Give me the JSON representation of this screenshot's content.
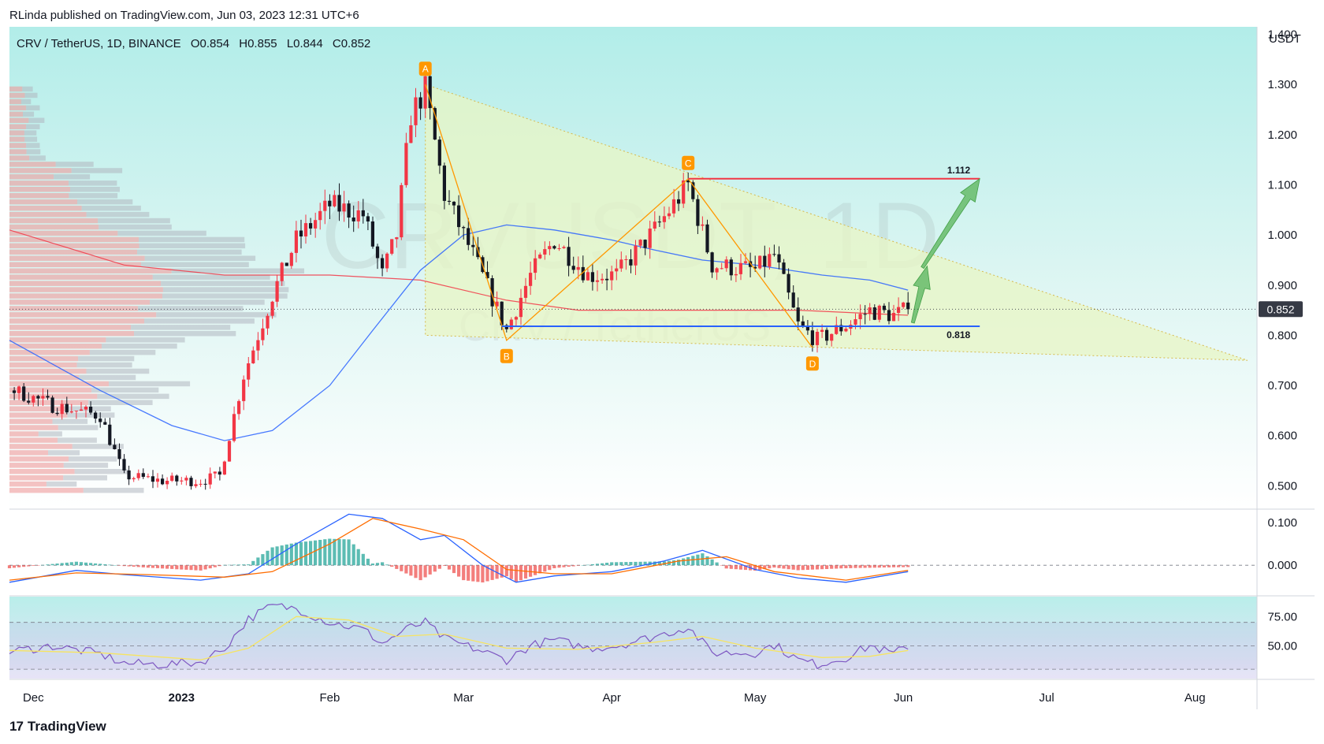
{
  "header": {
    "publisher": "RLinda published on TradingView.com, Jun 03, 2023 12:31 UTC+6",
    "symbol": "CRV / TetherUS, 1D, BINANCE",
    "ohlc": [
      {
        "k": "O",
        "v": "0.854"
      },
      {
        "k": "H",
        "v": "0.855"
      },
      {
        "k": "L",
        "v": "0.844"
      },
      {
        "k": "C",
        "v": "0.852"
      }
    ]
  },
  "watermark": {
    "big": "CRVUSDT, 1D",
    "small": "CRV / TetherUS"
  },
  "footer": {
    "brand": "TradingView"
  },
  "colors": {
    "up": "#f23645",
    "down": "#131722",
    "ma_blue": "#2962ff",
    "ma_red": "#f23645",
    "triangle": "#e8f5c4",
    "harmonic": "#ff9800",
    "arrow": "#66bb6a",
    "resistance": "#f23645",
    "support": "#2962ff",
    "macd_line": "#2962ff",
    "signal_line": "#ff6d00",
    "rsi_line": "#7e57c2",
    "rsi_ma": "#f7e461"
  },
  "chart_data": [
    {
      "type": "candlestick",
      "title": "CRV / TetherUS, 1D, BINANCE",
      "unit": "USDT",
      "y_ticks": [
        "1.400",
        "1.300",
        "1.200",
        "1.100",
        "1.000",
        "0.900",
        "0.800",
        "0.700",
        "0.600",
        "0.500"
      ],
      "ylim": [
        0.455,
        1.415
      ],
      "x_ticks": [
        "Dec",
        "2023",
        "Feb",
        "Mar",
        "Apr",
        "May",
        "Jun",
        "Jul",
        "Aug"
      ],
      "x_range": [
        "2022-11-26",
        "2023-08-14"
      ],
      "last_price": "0.852",
      "anchors": [
        [
          "2022-11-27",
          0.69
        ],
        [
          "2022-12-05",
          0.66
        ],
        [
          "2022-12-15",
          0.64
        ],
        [
          "2022-12-20",
          0.52
        ],
        [
          "2022-12-28",
          0.51
        ],
        [
          "2023-01-05",
          0.51
        ],
        [
          "2023-01-09",
          0.52
        ],
        [
          "2023-01-14",
          0.72
        ],
        [
          "2023-01-20",
          0.88
        ],
        [
          "2023-01-25",
          0.99
        ],
        [
          "2023-02-01",
          1.06
        ],
        [
          "2023-02-08",
          1.04
        ],
        [
          "2023-02-12",
          0.92
        ],
        [
          "2023-02-15",
          1.0
        ],
        [
          "2023-02-18",
          1.24
        ],
        [
          "2023-02-21",
          1.29
        ],
        [
          "2023-02-25",
          1.08
        ],
        [
          "2023-03-03",
          0.96
        ],
        [
          "2023-03-10",
          0.81
        ],
        [
          "2023-03-15",
          0.92
        ],
        [
          "2023-03-20",
          0.99
        ],
        [
          "2023-03-27",
          0.92
        ],
        [
          "2023-04-02",
          0.92
        ],
        [
          "2023-04-10",
          1.01
        ],
        [
          "2023-04-17",
          1.1
        ],
        [
          "2023-04-22",
          0.94
        ],
        [
          "2023-05-01",
          0.93
        ],
        [
          "2023-05-05",
          0.96
        ],
        [
          "2023-05-10",
          0.82
        ],
        [
          "2023-05-14",
          0.79
        ],
        [
          "2023-05-20",
          0.82
        ],
        [
          "2023-05-25",
          0.85
        ],
        [
          "2023-05-30",
          0.84
        ],
        [
          "2023-06-02",
          0.852
        ]
      ],
      "ma_blue": [
        [
          "2022-11-26",
          0.79
        ],
        [
          "2022-12-15",
          0.69
        ],
        [
          "2022-12-30",
          0.62
        ],
        [
          "2023-01-10",
          0.59
        ],
        [
          "2023-01-20",
          0.61
        ],
        [
          "2023-02-01",
          0.7
        ],
        [
          "2023-02-10",
          0.81
        ],
        [
          "2023-02-20",
          0.93
        ],
        [
          "2023-03-01",
          1.0
        ],
        [
          "2023-03-10",
          1.02
        ],
        [
          "2023-03-20",
          1.01
        ],
        [
          "2023-04-01",
          0.99
        ],
        [
          "2023-04-10",
          0.97
        ],
        [
          "2023-04-20",
          0.95
        ],
        [
          "2023-05-01",
          0.94
        ],
        [
          "2023-05-15",
          0.92
        ],
        [
          "2023-05-25",
          0.91
        ],
        [
          "2023-06-02",
          0.89
        ]
      ],
      "ma_red": [
        [
          "2022-11-26",
          1.01
        ],
        [
          "2022-12-20",
          0.94
        ],
        [
          "2023-01-10",
          0.92
        ],
        [
          "2023-02-01",
          0.92
        ],
        [
          "2023-02-20",
          0.91
        ],
        [
          "2023-03-10",
          0.87
        ],
        [
          "2023-03-25",
          0.85
        ],
        [
          "2023-04-15",
          0.85
        ],
        [
          "2023-05-10",
          0.85
        ],
        [
          "2023-06-02",
          0.84
        ]
      ],
      "harmonic_points": [
        {
          "label": "A",
          "date": "2023-02-21",
          "price": 1.3
        },
        {
          "label": "B",
          "date": "2023-03-10",
          "price": 0.79
        },
        {
          "label": "C",
          "date": "2023-04-17",
          "price": 1.112
        },
        {
          "label": "D",
          "date": "2023-05-13",
          "price": 0.775
        }
      ],
      "triangle": [
        {
          "date": "2023-02-21",
          "price": 1.3
        },
        {
          "date": "2023-08-12",
          "price": 0.75
        },
        {
          "date": "2023-02-21",
          "price": 0.8
        }
      ],
      "levels": [
        {
          "label": "1.112",
          "price": 1.112,
          "from": "2023-04-17",
          "to": "2023-06-17",
          "color": "resistance"
        },
        {
          "label": "0.818",
          "price": 0.818,
          "from": "2023-03-09",
          "to": "2023-06-17",
          "color": "support"
        }
      ],
      "arrows": [
        {
          "from": {
            "date": "2023-06-03",
            "price": 0.825
          },
          "to": {
            "date": "2023-06-06",
            "price": 0.938
          }
        },
        {
          "from": {
            "date": "2023-06-05",
            "price": 0.935
          },
          "to": {
            "date": "2023-06-17",
            "price": 1.112
          }
        }
      ]
    },
    {
      "type": "line",
      "title": "MACD",
      "y_ticks": [
        "0.100",
        "0.000"
      ],
      "ylim": [
        -0.07,
        0.13
      ],
      "macd": [
        [
          "2022-11-26",
          -0.04
        ],
        [
          "2022-12-10",
          -0.012
        ],
        [
          "2022-12-20",
          -0.022
        ],
        [
          "2023-01-05",
          -0.035
        ],
        [
          "2023-01-15",
          -0.02
        ],
        [
          "2023-01-25",
          0.05
        ],
        [
          "2023-02-05",
          0.12
        ],
        [
          "2023-02-12",
          0.11
        ],
        [
          "2023-02-20",
          0.06
        ],
        [
          "2023-02-25",
          0.07
        ],
        [
          "2023-03-05",
          0.0
        ],
        [
          "2023-03-12",
          -0.04
        ],
        [
          "2023-03-20",
          -0.025
        ],
        [
          "2023-04-01",
          -0.015
        ],
        [
          "2023-04-12",
          0.01
        ],
        [
          "2023-04-20",
          0.035
        ],
        [
          "2023-05-01",
          -0.01
        ],
        [
          "2023-05-10",
          -0.03
        ],
        [
          "2023-05-20",
          -0.04
        ],
        [
          "2023-06-02",
          -0.015
        ]
      ],
      "signal": [
        [
          "2022-11-26",
          -0.035
        ],
        [
          "2022-12-10",
          -0.018
        ],
        [
          "2022-12-25",
          -0.022
        ],
        [
          "2023-01-10",
          -0.028
        ],
        [
          "2023-01-20",
          -0.015
        ],
        [
          "2023-02-01",
          0.05
        ],
        [
          "2023-02-10",
          0.11
        ],
        [
          "2023-02-20",
          0.085
        ],
        [
          "2023-03-01",
          0.06
        ],
        [
          "2023-03-10",
          -0.01
        ],
        [
          "2023-03-20",
          -0.02
        ],
        [
          "2023-04-01",
          -0.02
        ],
        [
          "2023-04-15",
          0.01
        ],
        [
          "2023-04-25",
          0.02
        ],
        [
          "2023-05-05",
          -0.015
        ],
        [
          "2023-05-20",
          -0.035
        ],
        [
          "2023-06-02",
          -0.012
        ]
      ]
    },
    {
      "type": "line",
      "title": "RSI",
      "y_ticks": [
        "75.00",
        "50.00"
      ],
      "levels": [
        70,
        50,
        30
      ],
      "ylim": [
        22,
        92
      ],
      "rsi": [
        [
          "2022-11-26",
          45
        ],
        [
          "2022-12-05",
          50
        ],
        [
          "2022-12-15",
          43
        ],
        [
          "2022-12-20",
          35
        ],
        [
          "2022-12-28",
          34
        ],
        [
          "2023-01-05",
          36
        ],
        [
          "2023-01-10",
          48
        ],
        [
          "2023-01-15",
          73
        ],
        [
          "2023-01-20",
          84
        ],
        [
          "2023-01-25",
          82
        ],
        [
          "2023-02-01",
          70
        ],
        [
          "2023-02-08",
          64
        ],
        [
          "2023-02-12",
          52
        ],
        [
          "2023-02-18",
          66
        ],
        [
          "2023-02-21",
          70
        ],
        [
          "2023-02-25",
          56
        ],
        [
          "2023-03-03",
          48
        ],
        [
          "2023-03-10",
          38
        ],
        [
          "2023-03-15",
          50
        ],
        [
          "2023-03-20",
          55
        ],
        [
          "2023-03-27",
          48
        ],
        [
          "2023-04-02",
          50
        ],
        [
          "2023-04-10",
          58
        ],
        [
          "2023-04-17",
          66
        ],
        [
          "2023-04-22",
          44
        ],
        [
          "2023-05-01",
          44
        ],
        [
          "2023-05-05",
          51
        ],
        [
          "2023-05-10",
          38
        ],
        [
          "2023-05-14",
          34
        ],
        [
          "2023-05-20",
          40
        ],
        [
          "2023-05-25",
          50
        ],
        [
          "2023-05-30",
          43
        ],
        [
          "2023-06-02",
          50
        ]
      ],
      "rsi_ma": [
        [
          "2022-11-26",
          46
        ],
        [
          "2022-12-15",
          44
        ],
        [
          "2023-01-05",
          38
        ],
        [
          "2023-01-15",
          48
        ],
        [
          "2023-01-25",
          75
        ],
        [
          "2023-02-05",
          72
        ],
        [
          "2023-02-15",
          58
        ],
        [
          "2023-02-25",
          60
        ],
        [
          "2023-03-10",
          48
        ],
        [
          "2023-03-25",
          47
        ],
        [
          "2023-04-10",
          53
        ],
        [
          "2023-04-20",
          58
        ],
        [
          "2023-05-01",
          48
        ],
        [
          "2023-05-15",
          40
        ],
        [
          "2023-05-25",
          41
        ],
        [
          "2023-06-02",
          46
        ]
      ]
    }
  ]
}
